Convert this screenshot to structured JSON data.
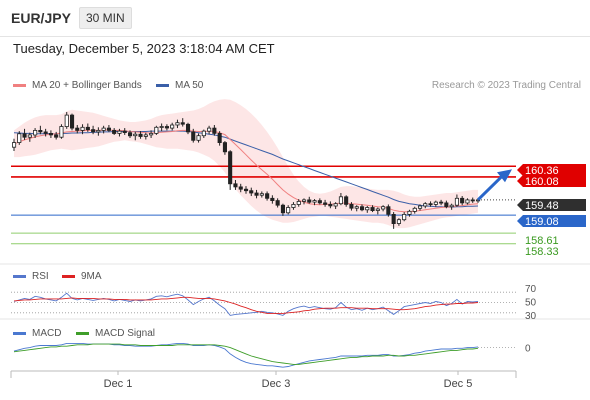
{
  "header": {
    "symbol": "EUR/JPY",
    "timeframe": "30 MIN"
  },
  "datetime": "Tuesday, December 5, 2023 3:18:04 AM CET",
  "legend": {
    "ma20": "MA 20 + Bollinger Bands",
    "ma50": "MA 50",
    "credit": "Research © 2023 Trading Central",
    "rsi": "RSI",
    "ma9": "9MA",
    "macd": "MACD",
    "macd_signal": "MACD Signal"
  },
  "colors": {
    "ma20": "#f08080",
    "ma50": "#3a5fa8",
    "bollinger_fill": "#fde3e3",
    "resistance": "#e00000",
    "support": "#2a66c9",
    "target": "#8fce6c",
    "up_candle": "#ffffff",
    "down_candle": "#222222",
    "arrow": "#2a66c9",
    "rsi": "#5577cc",
    "ma9": "#dd2222",
    "macd": "#4a78d0",
    "macd_signal": "#3f9e2a",
    "current_price": "#333333"
  },
  "chart_data": {
    "type": "candlestick",
    "x_ticks": [
      "Dec 1",
      "Dec 3",
      "Dec 5"
    ],
    "ylim": [
      157.8,
      162.2
    ],
    "candles": [
      [
        160.86,
        161.08,
        160.76,
        160.98
      ],
      [
        160.98,
        161.28,
        160.92,
        161.21
      ],
      [
        161.21,
        161.34,
        161.05,
        161.12
      ],
      [
        161.12,
        161.24,
        161.0,
        161.18
      ],
      [
        161.18,
        161.36,
        161.1,
        161.3
      ],
      [
        161.3,
        161.42,
        161.2,
        161.26
      ],
      [
        161.26,
        161.34,
        161.14,
        161.22
      ],
      [
        161.22,
        161.3,
        161.1,
        161.18
      ],
      [
        161.18,
        161.26,
        161.06,
        161.12
      ],
      [
        161.12,
        161.46,
        161.08,
        161.4
      ],
      [
        161.4,
        161.78,
        161.34,
        161.7
      ],
      [
        161.7,
        161.74,
        161.3,
        161.36
      ],
      [
        161.36,
        161.44,
        161.22,
        161.3
      ],
      [
        161.3,
        161.46,
        161.2,
        161.38
      ],
      [
        161.38,
        161.48,
        161.26,
        161.32
      ],
      [
        161.32,
        161.42,
        161.2,
        161.26
      ],
      [
        161.26,
        161.38,
        161.16,
        161.3
      ],
      [
        161.3,
        161.42,
        161.22,
        161.36
      ],
      [
        161.36,
        161.44,
        161.26,
        161.3
      ],
      [
        161.3,
        161.36,
        161.18,
        161.22
      ],
      [
        161.22,
        161.34,
        161.14,
        161.28
      ],
      [
        161.28,
        161.36,
        161.18,
        161.24
      ],
      [
        161.24,
        161.3,
        161.1,
        161.16
      ],
      [
        161.16,
        161.26,
        161.04,
        161.2
      ],
      [
        161.2,
        161.28,
        161.08,
        161.14
      ],
      [
        161.14,
        161.24,
        161.06,
        161.18
      ],
      [
        161.18,
        161.3,
        161.1,
        161.22
      ],
      [
        161.22,
        161.42,
        161.18,
        161.38
      ],
      [
        161.38,
        161.48,
        161.28,
        161.4
      ],
      [
        161.4,
        161.46,
        161.3,
        161.36
      ],
      [
        161.36,
        161.5,
        161.3,
        161.44
      ],
      [
        161.44,
        161.58,
        161.36,
        161.5
      ],
      [
        161.5,
        161.62,
        161.4,
        161.46
      ],
      [
        161.46,
        161.5,
        161.2,
        161.26
      ],
      [
        161.26,
        161.34,
        160.98,
        161.04
      ],
      [
        161.04,
        161.22,
        160.98,
        161.16
      ],
      [
        161.16,
        161.32,
        161.1,
        161.28
      ],
      [
        161.28,
        161.42,
        161.2,
        161.36
      ],
      [
        161.36,
        161.44,
        161.16,
        161.22
      ],
      [
        161.22,
        161.28,
        160.9,
        160.98
      ],
      [
        160.98,
        161.02,
        160.66,
        160.74
      ],
      [
        160.74,
        160.78,
        159.74,
        159.9
      ],
      [
        159.9,
        160.0,
        159.74,
        159.82
      ],
      [
        159.82,
        159.9,
        159.68,
        159.76
      ],
      [
        159.76,
        159.84,
        159.64,
        159.72
      ],
      [
        159.72,
        159.8,
        159.58,
        159.66
      ],
      [
        159.66,
        159.74,
        159.52,
        159.6
      ],
      [
        159.6,
        159.7,
        159.54,
        159.64
      ],
      [
        159.64,
        159.7,
        159.46,
        159.52
      ],
      [
        159.52,
        159.6,
        159.38,
        159.46
      ],
      [
        159.46,
        159.52,
        159.28,
        159.34
      ],
      [
        159.34,
        159.38,
        159.06,
        159.14
      ],
      [
        159.14,
        159.34,
        159.1,
        159.28
      ],
      [
        159.28,
        159.42,
        159.22,
        159.36
      ],
      [
        159.36,
        159.5,
        159.3,
        159.44
      ],
      [
        159.44,
        159.52,
        159.36,
        159.48
      ],
      [
        159.48,
        159.56,
        159.38,
        159.42
      ],
      [
        159.42,
        159.5,
        159.34,
        159.46
      ],
      [
        159.46,
        159.52,
        159.36,
        159.4
      ],
      [
        159.4,
        159.48,
        159.3,
        159.36
      ],
      [
        159.36,
        159.44,
        159.26,
        159.32
      ],
      [
        159.32,
        159.42,
        159.24,
        159.38
      ],
      [
        159.38,
        159.66,
        159.34,
        159.56
      ],
      [
        159.56,
        159.6,
        159.3,
        159.36
      ],
      [
        159.36,
        159.42,
        159.2,
        159.26
      ],
      [
        159.26,
        159.34,
        159.18,
        159.3
      ],
      [
        159.3,
        159.36,
        159.18,
        159.22
      ],
      [
        159.22,
        159.32,
        159.14,
        159.28
      ],
      [
        159.28,
        159.34,
        159.16,
        159.2
      ],
      [
        159.2,
        159.28,
        159.1,
        159.24
      ],
      [
        159.24,
        159.34,
        159.18,
        159.3
      ],
      [
        159.3,
        159.36,
        159.04,
        159.1
      ],
      [
        159.1,
        159.16,
        158.72,
        158.86
      ],
      [
        158.86,
        159.0,
        158.8,
        158.96
      ],
      [
        158.96,
        159.16,
        158.92,
        159.1
      ],
      [
        159.1,
        159.22,
        159.04,
        159.18
      ],
      [
        159.18,
        159.3,
        159.12,
        159.26
      ],
      [
        159.26,
        159.36,
        159.2,
        159.32
      ],
      [
        159.32,
        159.42,
        159.26,
        159.38
      ],
      [
        159.38,
        159.44,
        159.3,
        159.36
      ],
      [
        159.36,
        159.46,
        159.3,
        159.42
      ],
      [
        159.42,
        159.48,
        159.34,
        159.4
      ],
      [
        159.4,
        159.46,
        159.26,
        159.3
      ],
      [
        159.3,
        159.38,
        159.22,
        159.34
      ],
      [
        159.34,
        159.62,
        159.3,
        159.52
      ],
      [
        159.52,
        159.58,
        159.34,
        159.4
      ],
      [
        159.4,
        159.52,
        159.36,
        159.48
      ],
      [
        159.48,
        159.54,
        159.4,
        159.46
      ],
      [
        159.46,
        159.52,
        159.4,
        159.48
      ]
    ],
    "ma20": [
      160.94,
      161.0,
      161.05,
      161.09,
      161.13,
      161.16,
      161.18,
      161.2,
      161.21,
      161.23,
      161.26,
      161.27,
      161.28,
      161.29,
      161.3,
      161.3,
      161.3,
      161.31,
      161.31,
      161.3,
      161.3,
      161.29,
      161.27,
      161.26,
      161.25,
      161.24,
      161.23,
      161.24,
      161.25,
      161.26,
      161.27,
      161.29,
      161.3,
      161.3,
      161.28,
      161.27,
      161.27,
      161.28,
      161.27,
      161.24,
      161.19,
      161.06,
      160.93,
      160.8,
      160.66,
      160.52,
      160.39,
      160.27,
      160.15,
      160.02,
      159.88,
      159.74,
      159.63,
      159.54,
      159.47,
      159.42,
      159.38,
      159.36,
      159.35,
      159.36,
      159.37,
      159.38,
      159.4,
      159.39,
      159.38,
      159.37,
      159.35,
      159.34,
      159.32,
      159.3,
      159.29,
      159.26,
      159.21,
      159.18,
      159.17,
      159.17,
      159.18,
      159.2,
      159.22,
      159.24,
      159.26,
      159.28,
      159.29,
      159.3,
      159.32,
      159.33,
      159.35,
      159.37,
      159.38
    ],
    "ma50": [
      161.24,
      161.23,
      161.22,
      161.22,
      161.21,
      161.21,
      161.21,
      161.21,
      161.21,
      161.22,
      161.22,
      161.23,
      161.23,
      161.24,
      161.24,
      161.25,
      161.25,
      161.26,
      161.26,
      161.27,
      161.27,
      161.27,
      161.27,
      161.27,
      161.27,
      161.27,
      161.28,
      161.28,
      161.28,
      161.28,
      161.28,
      161.28,
      161.28,
      161.27,
      161.26,
      161.24,
      161.22,
      161.2,
      161.18,
      161.15,
      161.12,
      161.07,
      161.02,
      160.97,
      160.92,
      160.87,
      160.82,
      160.77,
      160.72,
      160.67,
      160.61,
      160.55,
      160.5,
      160.45,
      160.4,
      160.35,
      160.3,
      160.25,
      160.2,
      160.15,
      160.1,
      160.05,
      160.0,
      159.95,
      159.9,
      159.85,
      159.8,
      159.75,
      159.7,
      159.65,
      159.6,
      159.55,
      159.49,
      159.44,
      159.41,
      159.38,
      159.36,
      159.34,
      159.32,
      159.31,
      159.3,
      159.3,
      159.29,
      159.29,
      159.3,
      159.3,
      159.31,
      159.31,
      159.32
    ],
    "bollinger_upper": [
      161.3,
      161.4,
      161.5,
      161.58,
      161.64,
      161.68,
      161.7,
      161.7,
      161.7,
      161.72,
      161.8,
      161.84,
      161.82,
      161.8,
      161.78,
      161.76,
      161.72,
      161.68,
      161.64,
      161.6,
      161.56,
      161.54,
      161.52,
      161.52,
      161.54,
      161.56,
      161.6,
      161.66,
      161.7,
      161.72,
      161.74,
      161.76,
      161.78,
      161.8,
      161.82,
      161.86,
      161.92,
      162.0,
      162.06,
      162.1,
      162.12,
      162.1,
      162.04,
      161.96,
      161.86,
      161.74,
      161.6,
      161.44,
      161.26,
      161.06,
      160.84,
      160.6,
      160.36,
      160.14,
      159.96,
      159.82,
      159.72,
      159.66,
      159.64,
      159.66,
      159.7,
      159.76,
      159.82,
      159.84,
      159.84,
      159.82,
      159.8,
      159.78,
      159.76,
      159.74,
      159.74,
      159.74,
      159.72,
      159.68,
      159.62,
      159.58,
      159.56,
      159.56,
      159.58,
      159.6,
      159.62,
      159.64,
      159.66,
      159.66,
      159.68,
      159.7,
      159.72,
      159.74,
      159.74
    ],
    "bollinger_lower": [
      160.6,
      160.6,
      160.62,
      160.64,
      160.66,
      160.7,
      160.74,
      160.78,
      160.8,
      160.82,
      160.8,
      160.78,
      160.8,
      160.82,
      160.84,
      160.86,
      160.88,
      160.92,
      160.96,
      161.0,
      161.02,
      161.04,
      161.02,
      161.0,
      160.98,
      160.94,
      160.9,
      160.86,
      160.84,
      160.82,
      160.82,
      160.82,
      160.8,
      160.78,
      160.76,
      160.72,
      160.66,
      160.6,
      160.5,
      160.36,
      160.2,
      159.98,
      159.76,
      159.6,
      159.46,
      159.32,
      159.2,
      159.1,
      159.02,
      158.96,
      158.92,
      158.88,
      158.88,
      158.9,
      158.94,
      158.98,
      159.02,
      159.04,
      159.06,
      159.06,
      159.04,
      159.02,
      159.0,
      158.98,
      158.96,
      158.94,
      158.92,
      158.9,
      158.88,
      158.88,
      158.86,
      158.82,
      158.76,
      158.74,
      158.74,
      158.76,
      158.8,
      158.84,
      158.88,
      158.92,
      158.96,
      159.0,
      159.02,
      159.04,
      159.06,
      159.08,
      159.1,
      159.12,
      159.14
    ],
    "levels": [
      {
        "label": "160.36",
        "value": 160.36,
        "style": "resistance"
      },
      {
        "label": "160.08",
        "value": 160.08,
        "style": "resistance"
      },
      {
        "label": "159.48",
        "value": 159.48,
        "style": "current"
      },
      {
        "label": "159.08",
        "value": 159.08,
        "style": "support"
      },
      {
        "label": "158.61",
        "value": 158.61,
        "style": "target"
      },
      {
        "label": "158.33",
        "value": 158.33,
        "style": "target"
      }
    ],
    "projection": {
      "from_index": 88,
      "from_price": 159.48,
      "to_price": 160.28
    },
    "rsi": {
      "levels": [
        "70",
        "50",
        "30"
      ],
      "level_values": [
        70,
        50,
        30
      ],
      "ylim": [
        20,
        80
      ],
      "rsi": [
        52,
        55,
        58,
        56,
        62,
        60,
        57,
        55,
        53,
        60,
        68,
        58,
        55,
        58,
        56,
        54,
        56,
        58,
        56,
        53,
        56,
        54,
        52,
        55,
        53,
        55,
        57,
        62,
        63,
        61,
        64,
        66,
        63,
        55,
        46,
        52,
        57,
        60,
        53,
        45,
        38,
        25,
        27,
        28,
        29,
        30,
        31,
        33,
        31,
        30,
        28,
        25,
        33,
        38,
        41,
        43,
        40,
        42,
        40,
        38,
        37,
        40,
        50,
        41,
        36,
        38,
        35,
        39,
        36,
        38,
        41,
        34,
        27,
        34,
        42,
        44,
        46,
        48,
        50,
        48,
        52,
        50,
        44,
        48,
        56,
        47,
        52,
        51,
        52
      ],
      "ma9": [
        53,
        54,
        55,
        55,
        56,
        57,
        57,
        57,
        57,
        57,
        58,
        59,
        58,
        58,
        58,
        58,
        57,
        57,
        57,
        56,
        56,
        56,
        55,
        55,
        55,
        55,
        55,
        56,
        57,
        57,
        58,
        59,
        60,
        60,
        59,
        58,
        58,
        58,
        57,
        55,
        53,
        50,
        47,
        43,
        40,
        36,
        33,
        31,
        29,
        29,
        29,
        29,
        30,
        31,
        32,
        34,
        35,
        37,
        38,
        39,
        39,
        39,
        40,
        40,
        40,
        39,
        39,
        39,
        38,
        38,
        38,
        38,
        37,
        36,
        36,
        37,
        38,
        40,
        42,
        43,
        45,
        46,
        47,
        47,
        48,
        48,
        49,
        49,
        50
      ]
    },
    "macd": {
      "zero_label": "0",
      "ylim": [
        -0.32,
        0.18
      ],
      "macd": [
        -0.05,
        -0.03,
        -0.01,
        0.0,
        0.02,
        0.03,
        0.03,
        0.03,
        0.03,
        0.04,
        0.06,
        0.06,
        0.06,
        0.06,
        0.05,
        0.05,
        0.05,
        0.05,
        0.05,
        0.04,
        0.04,
        0.03,
        0.03,
        0.02,
        0.02,
        0.02,
        0.02,
        0.03,
        0.04,
        0.04,
        0.05,
        0.06,
        0.06,
        0.05,
        0.03,
        0.03,
        0.03,
        0.04,
        0.03,
        0.01,
        -0.02,
        -0.09,
        -0.14,
        -0.18,
        -0.21,
        -0.23,
        -0.24,
        -0.25,
        -0.26,
        -0.26,
        -0.27,
        -0.28,
        -0.27,
        -0.25,
        -0.23,
        -0.21,
        -0.19,
        -0.18,
        -0.17,
        -0.16,
        -0.15,
        -0.14,
        -0.12,
        -0.12,
        -0.12,
        -0.12,
        -0.12,
        -0.11,
        -0.11,
        -0.11,
        -0.1,
        -0.1,
        -0.12,
        -0.12,
        -0.11,
        -0.1,
        -0.08,
        -0.07,
        -0.05,
        -0.04,
        -0.03,
        -0.02,
        -0.02,
        -0.02,
        -0.01,
        -0.01,
        0.0,
        0.0,
        0.01
      ],
      "signal": [
        -0.06,
        -0.05,
        -0.04,
        -0.03,
        -0.02,
        -0.01,
        0.0,
        0.01,
        0.01,
        0.02,
        0.02,
        0.03,
        0.04,
        0.04,
        0.04,
        0.05,
        0.05,
        0.05,
        0.05,
        0.05,
        0.05,
        0.04,
        0.04,
        0.04,
        0.03,
        0.03,
        0.03,
        0.03,
        0.03,
        0.03,
        0.03,
        0.04,
        0.04,
        0.04,
        0.04,
        0.04,
        0.04,
        0.04,
        0.04,
        0.03,
        0.02,
        0.0,
        -0.03,
        -0.06,
        -0.09,
        -0.12,
        -0.14,
        -0.16,
        -0.18,
        -0.2,
        -0.21,
        -0.22,
        -0.23,
        -0.24,
        -0.24,
        -0.23,
        -0.22,
        -0.21,
        -0.2,
        -0.19,
        -0.18,
        -0.17,
        -0.16,
        -0.15,
        -0.14,
        -0.14,
        -0.13,
        -0.13,
        -0.12,
        -0.12,
        -0.12,
        -0.11,
        -0.11,
        -0.12,
        -0.12,
        -0.11,
        -0.11,
        -0.1,
        -0.09,
        -0.08,
        -0.07,
        -0.06,
        -0.05,
        -0.04,
        -0.04,
        -0.03,
        -0.02,
        -0.02,
        -0.01
      ]
    }
  }
}
